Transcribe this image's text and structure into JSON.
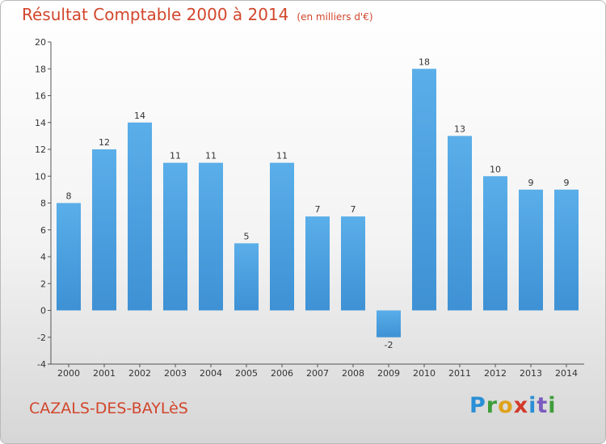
{
  "header": {
    "title": "Résultat Comptable 2000 à 2014",
    "unit": "(en milliers d'€)"
  },
  "footer": {
    "commune": "CAZALS-DES-BAYLèS",
    "logo_letters": [
      "P",
      "r",
      "o",
      "x",
      "i",
      "t",
      "i"
    ]
  },
  "colors": {
    "bar": "#3e91d4",
    "title": "#d2462c"
  },
  "chart_data": {
    "type": "bar",
    "title": "Résultat Comptable 2000 à 2014",
    "subtitle": "(en milliers d'€)",
    "xlabel": "",
    "ylabel": "",
    "categories": [
      "2000",
      "2001",
      "2002",
      "2003",
      "2004",
      "2005",
      "2006",
      "2007",
      "2008",
      "2009",
      "2010",
      "2011",
      "2012",
      "2013",
      "2014"
    ],
    "values": [
      8,
      12,
      14,
      11,
      11,
      5,
      11,
      7,
      7,
      -2,
      18,
      13,
      10,
      9,
      9
    ],
    "ylim": [
      -4,
      20
    ],
    "yticks": [
      -4,
      -2,
      0,
      2,
      4,
      6,
      8,
      10,
      12,
      14,
      16,
      18,
      20
    ],
    "grid": false,
    "legend": "none"
  }
}
